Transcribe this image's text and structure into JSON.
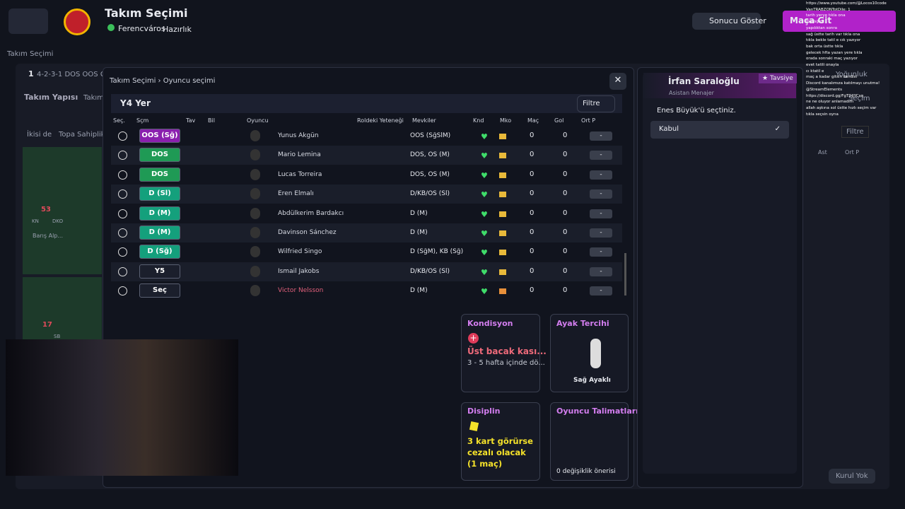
{
  "header": {
    "title": "Takım Seçimi",
    "club": "Ferencváros",
    "stage": "Hazırlık",
    "show_result": "Sonucu Göster",
    "go_match": "Maça Git"
  },
  "background": {
    "breadcrumb": "Takım Seçimi",
    "formation": "4-2-3-1 DOS OOS Ge",
    "formation_num": "1",
    "tab_structure": "Takım Yapısı",
    "tab_other": "Takım",
    "toggle_both": "İkisi de",
    "toggle_possession": "Topa Sahiplik",
    "rating_a": "53",
    "tag_kn": "KN",
    "tag_dko": "DKO",
    "player_a": "Barış Alp...",
    "rating_b": "17",
    "tag_sb": "SB",
    "filter": "Filtre",
    "col_ast": "Ast",
    "col_ortp": "Ort P",
    "right_tab": "Yoğunluk",
    "right_tab2": "Seçim",
    "board": "Kurul Yok"
  },
  "modal": {
    "breadcrumb": [
      "Takım Seçimi",
      "Oyuncu seçimi"
    ],
    "title": "Y4 Yer",
    "filter": "Filtre",
    "columns": [
      "Seç.",
      "Sçm",
      "Tav",
      "Bil",
      "Oyuncu",
      "Roldeki Yeteneği",
      "Mevkiler",
      "Knd",
      "Mko",
      "Maç",
      "Gol",
      "Ort P"
    ],
    "rows": [
      {
        "position": "OOS (Sğ)",
        "color": "#8a1fae",
        "name": "Yunus Akgün",
        "roles": "OOS (SğSlM)",
        "mko": "#e8b93a",
        "matches": "0",
        "goals": "0",
        "rating": "-"
      },
      {
        "position": "DOS",
        "color": "#1f9a55",
        "name": "Mario Lemina",
        "roles": "DOS, OS (M)",
        "mko": "#e8b93a",
        "matches": "0",
        "goals": "0",
        "rating": "-"
      },
      {
        "position": "DOS",
        "color": "#1f9a55",
        "name": "Lucas Torreira",
        "roles": "DOS, OS (M)",
        "mko": "#e8b93a",
        "matches": "0",
        "goals": "0",
        "rating": "-"
      },
      {
        "position": "D (Sl)",
        "color": "#14a07c",
        "name": "Eren Elmalı",
        "roles": "D/KB/OS (Sl)",
        "mko": "#e8b93a",
        "matches": "0",
        "goals": "0",
        "rating": "-"
      },
      {
        "position": "D (M)",
        "color": "#14a07c",
        "name": "Abdülkerim Bardakcı",
        "roles": "D (M)",
        "mko": "#e8b93a",
        "matches": "0",
        "goals": "0",
        "rating": "-"
      },
      {
        "position": "D (M)",
        "color": "#14a07c",
        "name": "Davinson Sánchez",
        "roles": "D (M)",
        "mko": "#e8b93a",
        "matches": "0",
        "goals": "0",
        "rating": "-"
      },
      {
        "position": "D (Sğ)",
        "color": "#14a07c",
        "name": "Wilfried Singo",
        "roles": "D (SğM), KB (Sğ)",
        "mko": "#e8b93a",
        "matches": "0",
        "goals": "0",
        "rating": "-"
      },
      {
        "position": "Y5",
        "color": "#1b1f2c",
        "name": "Ismail Jakobs",
        "roles": "D/KB/OS (Sl)",
        "mko": "#e8b93a",
        "matches": "0",
        "goals": "0",
        "rating": "-"
      },
      {
        "position": "Seç",
        "color": "#1b1f2c",
        "name": "Victor Nelsson",
        "roles": "D (M)",
        "mko": "#e8903a",
        "matches": "0",
        "goals": "0",
        "rating": "-"
      }
    ],
    "cards": {
      "condition": {
        "title": "Kondisyon",
        "injury": "Üst bacak kası...",
        "duration": "3 - 5 hafta içinde dö..."
      },
      "foot": {
        "title": "Ayak Tercihi",
        "value": "Sağ Ayaklı"
      },
      "discipline": {
        "title": "Disiplin",
        "text": "3 kart görürse cezalı olacak (1 maç)"
      },
      "instructions": {
        "title": "Oyuncu Talimatları",
        "text": "0 değişiklik önerisi"
      }
    }
  },
  "assistant": {
    "name": "İrfan Saraloğlu",
    "role": "Asistan Menajer",
    "tag": "Tavsiye",
    "message": "Enes Büyük'ü seçtiniz.",
    "option": "Kabul"
  },
  "chat": [
    "https://www.youtube.com/@Locos10code",
    "VanTRABZONTotDile: 1",
    "tarih yerye tıkla ona",
    "Ibaşlığını",
    "yapılıktan sonra",
    "sağ üstte tarih var tıkla ona",
    "tıkla bekle tatil e cık yazıyor",
    "bak orta üstte tıkla",
    "gelecek hfta yazan yere tıkla",
    "orada sonraki maç yazıyor",
    "evet tatili onayla",
    "cı ktatil e",
    "maç a kadar gitsin kendisi",
    "Discord kanalımıza katılmayı unutma!",
    "@StreamElements",
    "https://discord.gg/FgTDJJYCsq",
    "ne ne oluyor anlamadım",
    "allah aşkına sol üstte hızlı seçim var",
    "tıkla seçsin oyna"
  ]
}
